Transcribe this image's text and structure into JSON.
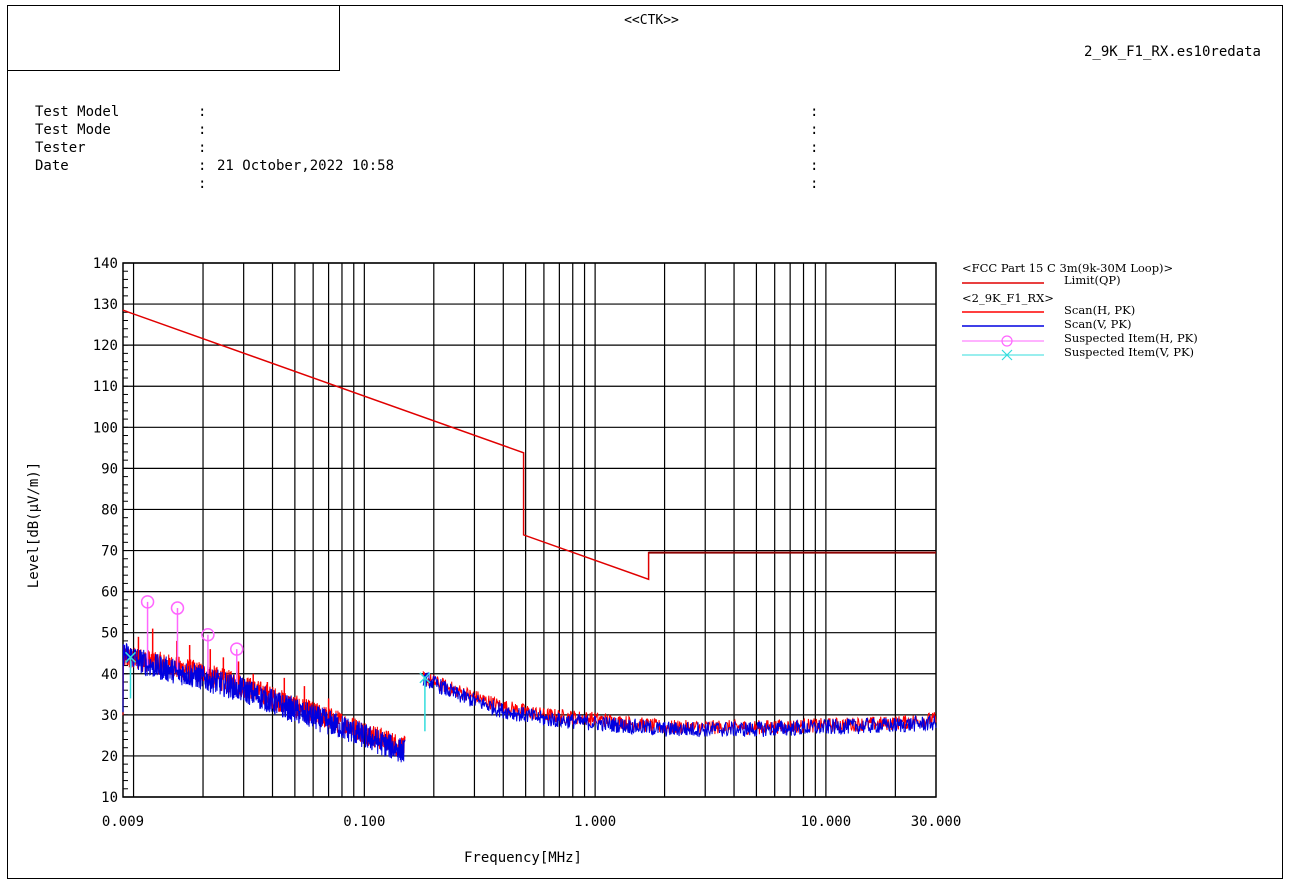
{
  "header": {
    "center": "<<CTK>>",
    "file": "2_9K_F1_RX.es10redata"
  },
  "info": [
    {
      "label": "Test Model",
      "value": ""
    },
    {
      "label": "Test Mode",
      "value": ""
    },
    {
      "label": "Tester",
      "value": ""
    },
    {
      "label": "Date",
      "value": "21 October,2022 10:58"
    },
    {
      "label": "",
      "value": ""
    }
  ],
  "legend": {
    "group1": "<FCC Part 15 C 3m(9k-30M  Loop)>",
    "limit_label": "Limit(QP)",
    "group2": "<2_9K_F1_RX>",
    "scan_h": "Scan(H, PK)",
    "scan_v": "Scan(V, PK)",
    "susp_h": "Suspected Item(H, PK)",
    "susp_v": "Suspected Item(V, PK)"
  },
  "colors": {
    "limit": "#e00000",
    "limit_dark": "#8b0000",
    "scan_h": "#ff0000",
    "scan_v": "#0000e0",
    "susp_h": "#ff66ff",
    "susp_v": "#33dddd"
  },
  "chart_data": {
    "type": "line",
    "xlabel": "Frequency[MHz]",
    "ylabel": "Level[dB(µV/m)]",
    "xscale": "log",
    "xlim": [
      0.009,
      30
    ],
    "ylim": [
      10,
      140
    ],
    "xticks": [
      {
        "value": 0.009,
        "label": "0.009"
      },
      {
        "value": 0.1,
        "label": "0.100"
      },
      {
        "value": 1,
        "label": "1.000"
      },
      {
        "value": 10,
        "label": "10.000"
      },
      {
        "value": 30,
        "label": "30.000"
      }
    ],
    "yticks": [
      10,
      20,
      30,
      40,
      50,
      60,
      70,
      80,
      90,
      100,
      110,
      120,
      130,
      140
    ],
    "grid": true,
    "limit": {
      "name": "Limit(QP)",
      "points": [
        [
          0.009,
          128.5
        ],
        [
          0.49,
          93.8
        ],
        [
          0.49,
          73.8
        ],
        [
          1.705,
          63.0
        ],
        [
          1.705,
          69.5
        ],
        [
          30,
          69.5
        ]
      ]
    },
    "scan_h": {
      "name": "Scan(H, PK)",
      "points": [
        [
          0.009,
          44
        ],
        [
          0.012,
          43
        ],
        [
          0.02,
          40
        ],
        [
          0.03,
          37
        ],
        [
          0.05,
          32
        ],
        [
          0.08,
          28
        ],
        [
          0.12,
          24
        ],
        [
          0.15,
          22
        ],
        [
          0.18,
          39
        ],
        [
          0.25,
          36
        ],
        [
          0.4,
          32
        ],
        [
          0.6,
          30
        ],
        [
          1.0,
          29
        ],
        [
          2.0,
          27
        ],
        [
          5.0,
          27
        ],
        [
          10,
          27.5
        ],
        [
          20,
          28
        ],
        [
          30,
          29
        ]
      ],
      "peaks": [
        [
          0.0105,
          49
        ],
        [
          0.0121,
          51
        ],
        [
          0.0154,
          48
        ],
        [
          0.0175,
          47
        ],
        [
          0.0215,
          46
        ],
        [
          0.0245,
          44
        ],
        [
          0.0285,
          43
        ],
        [
          0.033,
          40
        ],
        [
          0.038,
          38
        ],
        [
          0.045,
          39
        ],
        [
          0.055,
          37
        ],
        [
          0.07,
          34
        ]
      ]
    },
    "scan_v": {
      "name": "Scan(V, PK)",
      "points": [
        [
          0.009,
          45
        ],
        [
          0.012,
          42
        ],
        [
          0.02,
          39
        ],
        [
          0.03,
          36
        ],
        [
          0.05,
          31
        ],
        [
          0.08,
          27
        ],
        [
          0.12,
          23
        ],
        [
          0.15,
          21
        ],
        [
          0.18,
          39
        ],
        [
          0.25,
          35
        ],
        [
          0.4,
          31
        ],
        [
          0.6,
          29
        ],
        [
          1.0,
          28
        ],
        [
          2.0,
          26.5
        ],
        [
          5.0,
          26.5
        ],
        [
          10,
          27
        ],
        [
          20,
          27.5
        ],
        [
          30,
          28
        ]
      ]
    },
    "suspected_h": {
      "name": "Suspected Item(H, PK)",
      "points": [
        [
          0.0115,
          57.5,
          42
        ],
        [
          0.0155,
          56,
          41
        ],
        [
          0.021,
          49.5,
          40
        ],
        [
          0.028,
          46,
          38
        ]
      ]
    },
    "suspected_v": {
      "name": "Suspected Item(V, PK)",
      "points": [
        [
          0.0097,
          44,
          34
        ],
        [
          0.183,
          39,
          26
        ]
      ]
    }
  }
}
